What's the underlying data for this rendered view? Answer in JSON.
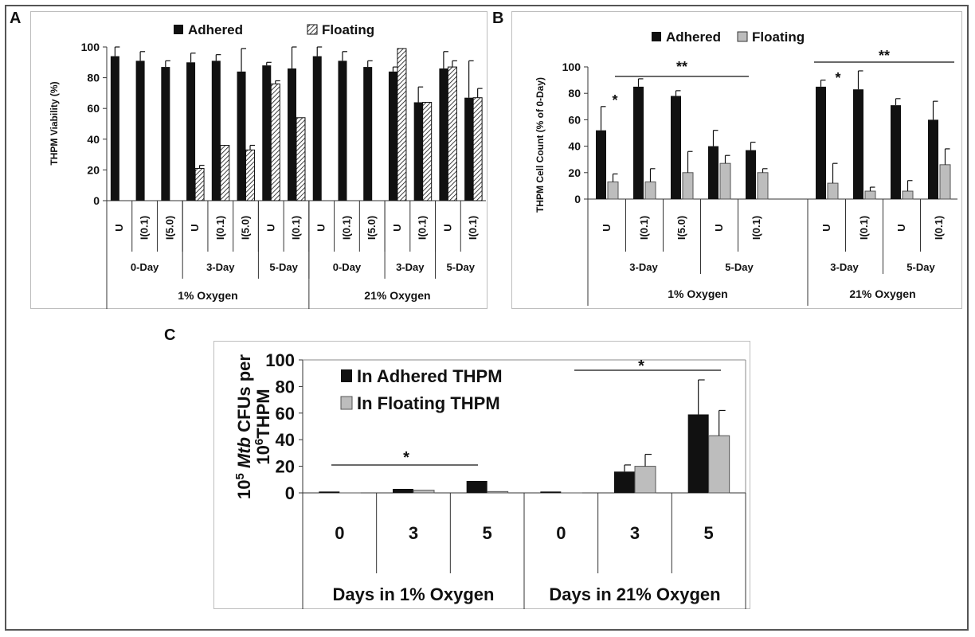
{
  "panels": {
    "A": {
      "label": "A",
      "legend": [
        "Adhered",
        "Floating"
      ],
      "ylabel": "THPM Viability (%)",
      "yticks": [
        "0",
        "20",
        "40",
        "60",
        "80",
        "100"
      ],
      "groups": [
        {
          "name": "1% Oxygen",
          "days": [
            {
              "name": "0-Day",
              "conds": [
                "U",
                "I(0.1)",
                "I(5.0)"
              ]
            },
            {
              "name": "3-Day",
              "conds": [
                "U",
                "I(0.1)",
                "I(5.0)"
              ]
            },
            {
              "name": "5-Day",
              "conds": [
                "U",
                "I(0.1)"
              ]
            }
          ]
        },
        {
          "name": "21% Oxygen",
          "days": [
            {
              "name": "0-Day",
              "conds": [
                "U",
                "I(0.1)",
                "I(5.0)"
              ]
            },
            {
              "name": "3-Day",
              "conds": [
                "U",
                "I(0.1)"
              ]
            },
            {
              "name": "5-Day",
              "conds": [
                "U",
                "I(0.1)"
              ]
            }
          ]
        }
      ]
    },
    "B": {
      "label": "B",
      "legend": [
        "Adhered",
        "Floating"
      ],
      "ylabel": "THPM Cell Count (% of 0-Day)",
      "yticks": [
        "0",
        "20",
        "40",
        "60",
        "80",
        "100"
      ],
      "groups": [
        {
          "name": "1% Oxygen",
          "days": [
            {
              "name": "3-Day",
              "conds": [
                "U",
                "I(0.1)",
                "I(5.0)"
              ]
            },
            {
              "name": "5-Day",
              "conds": [
                "U",
                "I(0.1)"
              ]
            }
          ]
        },
        {
          "name": "21% Oxygen",
          "days": [
            {
              "name": "3-Day",
              "conds": [
                "U",
                "I(0.1)"
              ]
            },
            {
              "name": "5-Day",
              "conds": [
                "U",
                "I(0.1)"
              ]
            }
          ]
        }
      ],
      "annotations": [
        "*",
        "*",
        "**",
        "**"
      ]
    },
    "C": {
      "label": "C",
      "legend": [
        "In Adhered  THPM",
        "In Floating  THPM"
      ],
      "ylabel_parts": [
        "10",
        "5",
        " Mtb",
        " CFUs  per",
        "10",
        "6",
        "THPM"
      ],
      "yticks": [
        "0",
        "20",
        "40",
        "60",
        "80",
        "100"
      ],
      "groups": [
        {
          "name": "Days in 1% Oxygen",
          "days": [
            "0",
            "3",
            "5"
          ]
        },
        {
          "name": "Days in 21% Oxygen",
          "days": [
            "0",
            "3",
            "5"
          ]
        }
      ],
      "annotations": [
        "*",
        "*"
      ]
    }
  },
  "chart_data": [
    {
      "panel": "A",
      "type": "bar",
      "ylabel": "THPM Viability (%)",
      "ylim": [
        0,
        100
      ],
      "categories": [
        "U",
        "I(0.1)",
        "I(5.0)",
        "U",
        "I(0.1)",
        "I(5.0)",
        "U",
        "I(0.1)",
        "U",
        "I(0.1)",
        "I(5.0)",
        "U",
        "I(0.1)",
        "U",
        "I(0.1)"
      ],
      "series": [
        {
          "name": "Adhered",
          "values": [
            94,
            91,
            87,
            90,
            91,
            84,
            88,
            86,
            94,
            91,
            87,
            84,
            64,
            86,
            67
          ],
          "errors": [
            6,
            6,
            4,
            6,
            4,
            15,
            2,
            14,
            6,
            6,
            4,
            3,
            10,
            11,
            24
          ]
        },
        {
          "name": "Floating",
          "values": [
            null,
            null,
            null,
            21,
            36,
            33,
            76,
            54,
            null,
            null,
            null,
            99,
            64,
            87,
            67
          ],
          "errors": [
            null,
            null,
            null,
            2,
            null,
            3,
            2,
            null,
            null,
            null,
            null,
            null,
            null,
            4,
            6
          ]
        }
      ],
      "grid": false,
      "legend_position": "top"
    },
    {
      "panel": "B",
      "type": "bar",
      "ylabel": "THPM Cell Count (% of 0-Day)",
      "ylim": [
        0,
        100
      ],
      "categories": [
        "U",
        "I(0.1)",
        "I(5.0)",
        "U",
        "I(0.1)",
        "U",
        "I(0.1)",
        "U",
        "I(0.1)"
      ],
      "series": [
        {
          "name": "Adhered",
          "values": [
            52,
            85,
            78,
            40,
            37,
            85,
            83,
            71,
            60
          ],
          "errors": [
            18,
            6,
            4,
            12,
            6,
            5,
            14,
            5,
            14
          ]
        },
        {
          "name": "Floating",
          "values": [
            13,
            13,
            20,
            27,
            20,
            12,
            6,
            6,
            26
          ],
          "errors": [
            6,
            10,
            16,
            6,
            3,
            15,
            3,
            8,
            12
          ]
        }
      ],
      "grid": false,
      "legend_position": "top"
    },
    {
      "panel": "C",
      "type": "bar",
      "ylim": [
        0,
        100
      ],
      "categories": [
        "0",
        "3",
        "5",
        "0",
        "3",
        "5"
      ],
      "series": [
        {
          "name": "In Adhered  THPM",
          "values": [
            1,
            3,
            9,
            1,
            16,
            59
          ],
          "errors": [
            null,
            null,
            null,
            null,
            5,
            26
          ]
        },
        {
          "name": "In Floating  THPM",
          "values": [
            0,
            2,
            1,
            0,
            20,
            43
          ],
          "errors": [
            null,
            null,
            null,
            null,
            9,
            19
          ]
        }
      ],
      "grid": false,
      "legend_position": "top-left"
    }
  ]
}
